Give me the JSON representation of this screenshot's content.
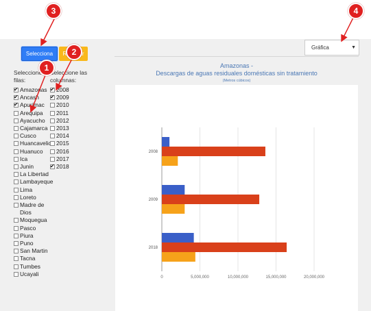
{
  "buttons": {
    "select_label": "Selecciona",
    "reset_label": "Reiniciar"
  },
  "rows_panel": {
    "title": "Seleccione las filas:",
    "items": [
      {
        "label": "Amazonas",
        "checked": true
      },
      {
        "label": "Ancash",
        "checked": true
      },
      {
        "label": "Apurímac",
        "checked": true
      },
      {
        "label": "Arequipa",
        "checked": false
      },
      {
        "label": "Ayacucho",
        "checked": false
      },
      {
        "label": "Cajamarca",
        "checked": false
      },
      {
        "label": "Cusco",
        "checked": false
      },
      {
        "label": "Huancavelica",
        "checked": false
      },
      {
        "label": "Huanuco",
        "checked": false
      },
      {
        "label": "Ica",
        "checked": false
      },
      {
        "label": "Junin",
        "checked": false
      },
      {
        "label": "La Libertad",
        "checked": false
      },
      {
        "label": "Lambayeque",
        "checked": false
      },
      {
        "label": "Lima",
        "checked": false
      },
      {
        "label": "Loreto",
        "checked": false
      },
      {
        "label": "Madre de Dios",
        "checked": false
      },
      {
        "label": "Moquegua",
        "checked": false
      },
      {
        "label": "Pasco",
        "checked": false
      },
      {
        "label": "Piura",
        "checked": false
      },
      {
        "label": "Puno",
        "checked": false
      },
      {
        "label": "San Martin",
        "checked": false
      },
      {
        "label": "Tacna",
        "checked": false
      },
      {
        "label": "Tumbes",
        "checked": false
      },
      {
        "label": "Ucayali",
        "checked": false
      }
    ]
  },
  "cols_panel": {
    "title": "Seleccione las columnas:",
    "items": [
      {
        "label": "2008",
        "checked": true
      },
      {
        "label": "2009",
        "checked": true
      },
      {
        "label": "2010",
        "checked": false
      },
      {
        "label": "2011",
        "checked": false
      },
      {
        "label": "2012",
        "checked": false
      },
      {
        "label": "2013",
        "checked": false
      },
      {
        "label": "2014",
        "checked": false
      },
      {
        "label": "2015",
        "checked": false
      },
      {
        "label": "2016",
        "checked": false
      },
      {
        "label": "2017",
        "checked": false
      },
      {
        "label": "2018",
        "checked": true
      }
    ]
  },
  "chart_select": {
    "value": "Gráfica"
  },
  "badges": [
    "1",
    "2",
    "3",
    "4"
  ],
  "colors": {
    "annotation_red": "#e02020",
    "selecciona_blue": "#2f7df6",
    "reset_yellow": "#f9b81b"
  },
  "chart_data": {
    "type": "bar",
    "orientation": "horizontal",
    "title": "Amazonas -",
    "subtitle": "Descargas de aguas residuales domésticas sin tratamiento",
    "unit_note": "(Metros cúbicos)",
    "categories": [
      "2008",
      "2009",
      "2018"
    ],
    "series": [
      {
        "color": "#3a5fc8",
        "values": [
          1000000,
          3000000,
          4200000
        ]
      },
      {
        "color": "#d9401a",
        "values": [
          13600000,
          12800000,
          16400000
        ]
      },
      {
        "color": "#f6a21a",
        "values": [
          2100000,
          3000000,
          4400000
        ]
      }
    ],
    "xlim": [
      0,
      20000000
    ],
    "xticks": [
      "0",
      "5,000,000",
      "10,000,000",
      "15,000,000",
      "20,000,000"
    ],
    "grid": true
  }
}
